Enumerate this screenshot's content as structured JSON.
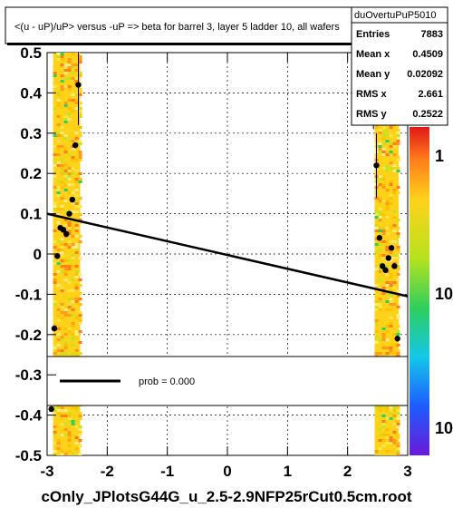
{
  "chart_data": {
    "type": "scatter",
    "title": "<(u - uP)/uP> versus  -uP => beta for barrel 3, layer 5 ladder 10, all  wafers",
    "filename": "cOnly_JPlotsG44G_u_2.5-2.9NFP25rCut0.5cm.root",
    "xlim": [
      -3,
      3
    ],
    "ylim": [
      -0.5,
      0.5
    ],
    "x_ticks": [
      "-3",
      "-2",
      "-1",
      "0",
      "1",
      "2",
      "3"
    ],
    "y_ticks": [
      "-0.5",
      "-0.4",
      "-0.3",
      "-0.2",
      "-0.1",
      "0",
      "0.1",
      "0.2",
      "0.3",
      "0.4",
      "0.5"
    ],
    "grid": true,
    "colz_labels": [
      "1",
      "10",
      "10"
    ],
    "stats": {
      "name": "duOvertuPuP5010",
      "rows": [
        {
          "label": "Entries",
          "value": "7883"
        },
        {
          "label": "Mean x",
          "value": "0.4509"
        },
        {
          "label": "Mean y",
          "value": "0.02092"
        },
        {
          "label": "RMS x",
          "value": "2.661"
        },
        {
          "label": "RMS y",
          "value": "0.2522"
        }
      ]
    },
    "legend": {
      "entry": "prob = 0.000"
    },
    "fit_line": {
      "x": [
        -3,
        3
      ],
      "y": [
        0.1,
        -0.105
      ]
    },
    "bands": [
      {
        "x_start": -2.9,
        "x_end": -2.45
      },
      {
        "x_start": 2.45,
        "x_end": 2.85
      }
    ],
    "profile_points": [
      {
        "x": -2.93,
        "y": -0.385,
        "err": 0.0
      },
      {
        "x": -2.88,
        "y": -0.185,
        "err": 0.0
      },
      {
        "x": -2.83,
        "y": -0.005,
        "err": 0.0
      },
      {
        "x": -2.78,
        "y": 0.065,
        "err": 0.0
      },
      {
        "x": -2.73,
        "y": 0.06,
        "err": 0.0
      },
      {
        "x": -2.68,
        "y": 0.05,
        "err": 0.0
      },
      {
        "x": -2.63,
        "y": 0.1,
        "err": 0.0
      },
      {
        "x": -2.58,
        "y": 0.135,
        "err": 0.0
      },
      {
        "x": -2.53,
        "y": 0.27,
        "err": 0.0
      },
      {
        "x": -2.48,
        "y": 0.42,
        "err": 0.1
      },
      {
        "x": 2.38,
        "y": 0.48,
        "err": 0.12
      },
      {
        "x": 2.43,
        "y": 0.35,
        "err": 0.04
      },
      {
        "x": 2.48,
        "y": 0.22,
        "err": 0.08
      },
      {
        "x": 2.53,
        "y": 0.04,
        "err": 0.0
      },
      {
        "x": 2.58,
        "y": -0.03,
        "err": 0.0
      },
      {
        "x": 2.63,
        "y": -0.04,
        "err": 0.0
      },
      {
        "x": 2.68,
        "y": -0.01,
        "err": 0.0
      },
      {
        "x": 2.73,
        "y": 0.015,
        "err": 0.0
      },
      {
        "x": 2.78,
        "y": -0.03,
        "err": 0.0
      },
      {
        "x": 2.83,
        "y": -0.21,
        "err": 0.0
      }
    ]
  }
}
